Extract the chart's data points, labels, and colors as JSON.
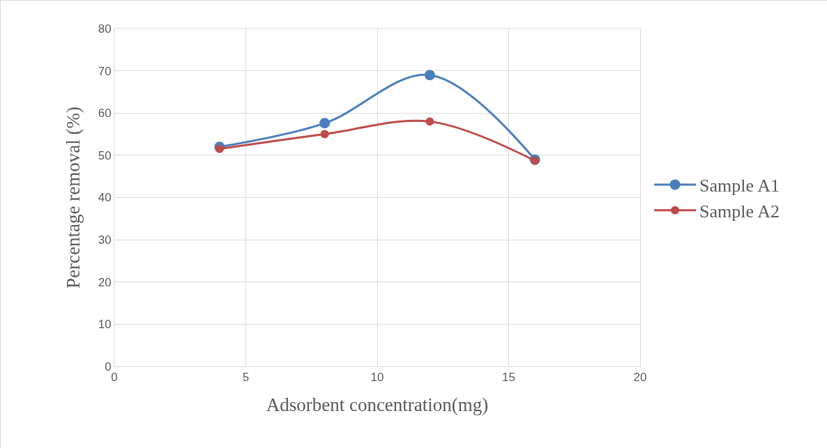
{
  "chart_data": {
    "type": "line",
    "xlabel": "Adsorbent concentration(mg)",
    "ylabel": "Percentage removal (%)",
    "x": [
      4,
      8,
      12,
      16
    ],
    "series": [
      {
        "name": "Sample A1",
        "color": "#4a7ebb",
        "values": [
          52,
          57.6,
          69,
          49
        ]
      },
      {
        "name": "Sample A2",
        "color": "#be4b48",
        "values": [
          51.5,
          55,
          58,
          48.7
        ]
      }
    ],
    "xlim": [
      0,
      20
    ],
    "xticks": [
      0,
      5,
      10,
      15,
      20
    ],
    "ylim": [
      0,
      80
    ],
    "yticks": [
      0,
      10,
      20,
      30,
      40,
      50,
      60,
      70,
      80
    ],
    "grid": true,
    "legend": "right",
    "marker": "circle",
    "line_style": "solid"
  }
}
